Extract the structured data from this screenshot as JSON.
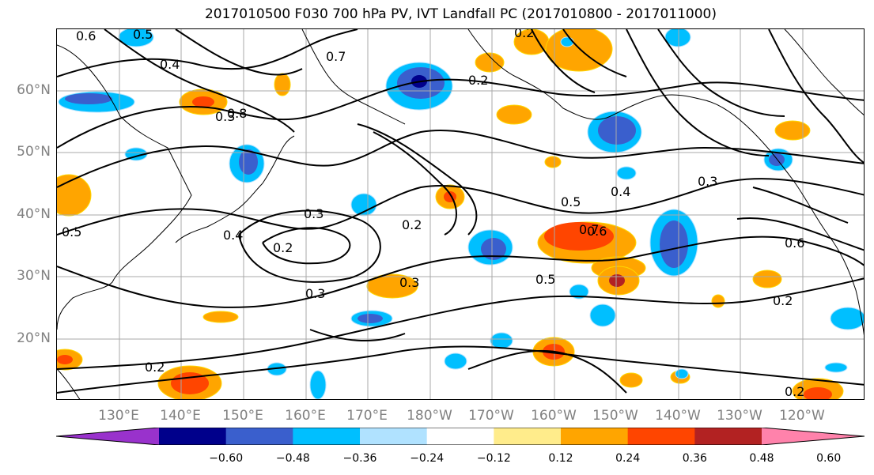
{
  "title": "2017010500 F030 700 hPa PV, IVT Landfall PC (2017010800 - 2017011000)",
  "lat_labels": [
    "60°N",
    "50°N",
    "40°N",
    "30°N",
    "20°N"
  ],
  "lon_labels": [
    "130°E",
    "140°E",
    "150°E",
    "160°E",
    "170°E",
    "180°W",
    "170°W",
    "160°W",
    "150°W",
    "140°W",
    "130°W",
    "120°W"
  ],
  "contour_labels": [
    "0.6",
    "0.5",
    "0.4",
    "0.3",
    "0.2",
    "0.7",
    "0.8",
    "0.3",
    "0.5",
    "0.2",
    "0.3",
    "0.4",
    "0.2",
    "0.3",
    "0.5",
    "0.4",
    "0.5",
    "0.7",
    "0.6",
    "0.3",
    "0.6",
    "0.2",
    "0.2",
    "0.2",
    "0.2"
  ],
  "colorbar": {
    "colors": [
      "#9932cc",
      "#00008b",
      "#3a5fcd",
      "#00bfff",
      "#b0e2ff",
      "#ffffff",
      "#ffec8b",
      "#ffa500",
      "#ff4500",
      "#b22222",
      "#ff82ab"
    ],
    "ticks": [
      "−0.60",
      "−0.48",
      "−0.36",
      "−0.24",
      "−0.12",
      "0.12",
      "0.24",
      "0.36",
      "0.48",
      "0.60"
    ]
  },
  "map": {
    "projection": "lat-lon",
    "lat_range": [
      10,
      70
    ],
    "lon_range_east": [
      120,
      250
    ],
    "grid": true,
    "coastlines": true
  }
}
